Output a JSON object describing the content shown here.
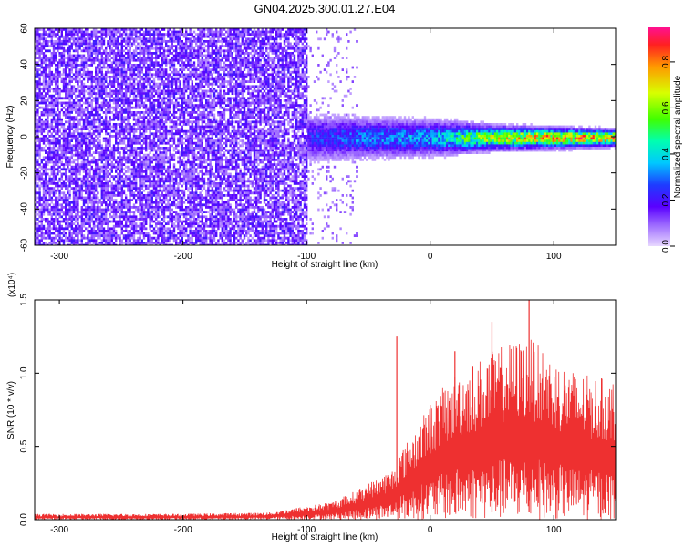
{
  "figure_title": "GN04.2025.300.01.27.E04",
  "chart_data": [
    {
      "type": "heatmap",
      "title": "GN04.2025.300.01.27.E04",
      "xlabel": "Height of straight line (km)",
      "ylabel": "Frequency (Hz)",
      "xlim": [
        -320,
        150
      ],
      "ylim": [
        -60,
        60
      ],
      "x_ticks": [
        -300,
        -200,
        -100,
        0,
        100
      ],
      "y_ticks": [
        -60,
        -40,
        -20,
        0,
        20,
        40,
        60
      ],
      "colorbar": {
        "label": "Normalized spectral amplitude",
        "range": [
          0.0,
          0.95
        ],
        "ticks": [
          0.0,
          0.2,
          0.4,
          0.6,
          0.8
        ]
      },
      "description_points": [
        {
          "x": -300,
          "spread_hz": 60,
          "amplitude": 0.15
        },
        {
          "x": -200,
          "spread_hz": 60,
          "amplitude": 0.15
        },
        {
          "x": -120,
          "spread_hz": 60,
          "amplitude": 0.12
        },
        {
          "x": -100,
          "spread_hz": 12,
          "amplitude": 0.25
        },
        {
          "x": -50,
          "spread_hz": 10,
          "amplitude": 0.35
        },
        {
          "x": 0,
          "spread_hz": 9,
          "amplitude": 0.4
        },
        {
          "x": 50,
          "spread_hz": 6,
          "amplitude": 0.7
        },
        {
          "x": 100,
          "spread_hz": 5,
          "amplitude": 0.85
        },
        {
          "x": 150,
          "spread_hz": 4,
          "amplitude": 0.9
        }
      ]
    },
    {
      "type": "line",
      "xlabel": "Height of straight line (km)",
      "ylabel": "SNR (10 * v/v)",
      "scale_label": "(x10⁴)",
      "xlim": [
        -320,
        150
      ],
      "ylim": [
        0,
        1.5
      ],
      "x_ticks": [
        -300,
        -200,
        -100,
        0,
        100
      ],
      "y_ticks": [
        0.0,
        0.5,
        1.0,
        1.5
      ],
      "envelope": {
        "x": [
          -320,
          -200,
          -130,
          -110,
          -80,
          -60,
          -40,
          -30,
          -25,
          -10,
          0,
          20,
          40,
          60,
          80,
          100,
          120,
          150
        ],
        "y": [
          0.04,
          0.04,
          0.05,
          0.08,
          0.12,
          0.2,
          0.3,
          0.35,
          0.45,
          0.65,
          0.8,
          1.0,
          1.1,
          1.2,
          1.25,
          1.1,
          1.0,
          0.95
        ]
      },
      "spikes": [
        {
          "x": -27,
          "y": 1.25
        },
        {
          "x": 80,
          "y": 1.5
        },
        {
          "x": 50,
          "y": 1.35
        },
        {
          "x": 20,
          "y": 1.15
        }
      ]
    }
  ]
}
